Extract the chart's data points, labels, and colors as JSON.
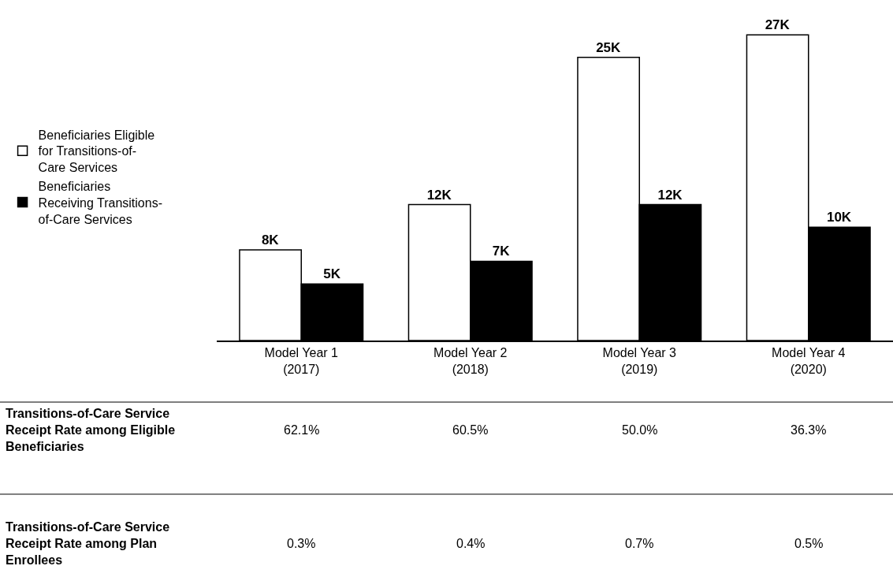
{
  "chart_data": {
    "type": "bar",
    "categories": [
      "Model Year 1 (2017)",
      "Model Year 2 (2018)",
      "Model Year 3 (2019)",
      "Model Year 4 (2020)"
    ],
    "series": [
      {
        "name": "Beneficiaries Eligible for Transitions-of-Care Services",
        "color": "#ffffff",
        "values": [
          8,
          12,
          25,
          27
        ],
        "value_labels": [
          "8K",
          "12K",
          "25K",
          "27K"
        ]
      },
      {
        "name": "Beneficiaries Receiving Transitions-of-Care Services",
        "color": "#000000",
        "values": [
          5,
          7,
          12,
          10
        ],
        "value_labels": [
          "5K",
          "7K",
          "12K",
          "10K"
        ]
      }
    ],
    "legend": "left",
    "grid": false,
    "tick_labels": "x",
    "annotations": [
      "Transitions-of-Care Service Receipt Rate among Eligible Beneficiaries",
      "62.1%",
      "60.5%",
      "50.0%",
      "36.3%",
      "Transitions-of-Care Service Receipt Rate among Plan Enrollees",
      "0.3%",
      "0.4%",
      "0.7%",
      "0.5%"
    ]
  }
}
